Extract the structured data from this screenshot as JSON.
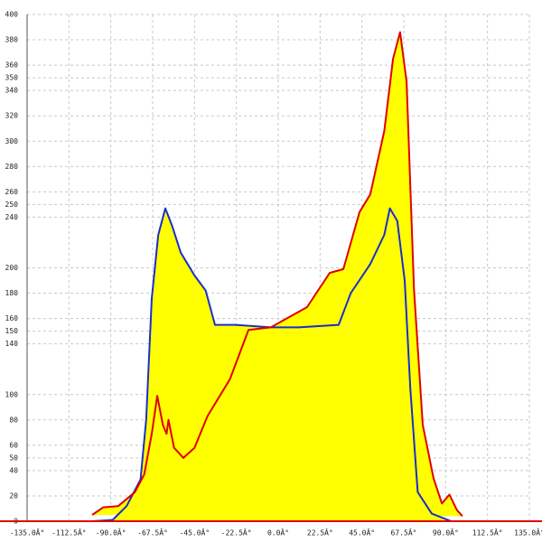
{
  "chart_data": {
    "type": "area",
    "xlim": [
      -135,
      135
    ],
    "ylim": [
      0,
      400
    ],
    "xticks": [
      {
        "value": -135,
        "label": "-135.0Â°"
      },
      {
        "value": -112.5,
        "label": "-112.5Â°"
      },
      {
        "value": -90,
        "label": "-90.0Â°"
      },
      {
        "value": -67.5,
        "label": "-67.5Â°"
      },
      {
        "value": -45,
        "label": "-45.0Â°"
      },
      {
        "value": -22.5,
        "label": "-22.5Â°"
      },
      {
        "value": 0,
        "label": "0.0Â°"
      },
      {
        "value": 22.5,
        "label": "22.5Â°"
      },
      {
        "value": 45,
        "label": "45.0Â°"
      },
      {
        "value": 67.5,
        "label": "67.5Â°"
      },
      {
        "value": 90,
        "label": "90.0Â°"
      },
      {
        "value": 112.5,
        "label": "112.5Â°"
      },
      {
        "value": 135,
        "label": "135.0Â°"
      }
    ],
    "yticks": [
      0,
      20,
      40,
      50,
      60,
      80,
      100,
      140,
      150,
      160,
      180,
      200,
      240,
      250,
      260,
      280,
      300,
      320,
      340,
      350,
      360,
      380,
      400
    ],
    "grid": true,
    "area_color": "#ffff00",
    "axis_color": "#e00000",
    "series": [
      {
        "color": "#1a2fc8",
        "x": [
          -100,
          -89,
          -81.5,
          -74,
          -71,
          -68,
          -64.5,
          -60.7,
          -57,
          -52.4,
          -45,
          -39,
          -34,
          -23,
          -4,
          11,
          32.5,
          39,
          49.5,
          57,
          60,
          64,
          68,
          71,
          75,
          82.5,
          93,
          99
        ],
        "values": [
          0,
          1,
          12,
          33,
          80,
          176,
          226,
          247,
          233,
          212,
          194,
          182,
          155,
          155,
          153,
          153,
          155,
          180,
          203,
          226,
          247,
          237,
          190,
          105,
          23,
          6,
          0,
          0
        ]
      },
      {
        "color": "#e00000",
        "x": [
          -100,
          -94,
          -86,
          -77,
          -72,
          -68,
          -65,
          -62,
          -60,
          -59,
          -56,
          -51,
          -45,
          -38,
          -26,
          -16,
          -4,
          15.5,
          27.7,
          35,
          43.7,
          49.5,
          57,
          61.7,
          65.5,
          69,
          73,
          77.7,
          83.5,
          88,
          92,
          96,
          99
        ],
        "values": [
          5,
          11,
          12,
          23,
          37,
          69,
          99,
          76,
          69,
          80,
          58,
          50,
          58,
          83,
          112,
          151,
          153,
          169,
          196,
          199,
          244,
          258,
          308,
          365,
          386,
          347,
          183,
          76,
          34,
          14,
          21,
          9,
          4
        ]
      }
    ]
  }
}
